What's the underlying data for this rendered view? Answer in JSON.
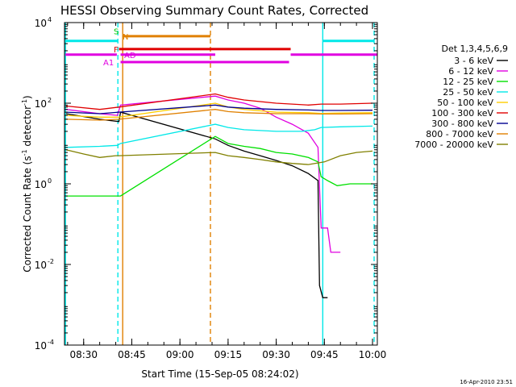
{
  "chart_data": {
    "type": "line",
    "title": "HESSI Observing Summary Count Rates, Corrected",
    "xlabel": "Start Time (15-Sep-05 08:24:02)",
    "ylabel": "Corrected Count Rate (s⁻¹ detector⁻¹)",
    "ylabel_parts": {
      "main": "Corrected Count Rate (s",
      "exp1": "-1",
      "mid": " detector",
      "exp2": "-1",
      "end": ")"
    },
    "y_scale": "log",
    "xlim": [
      "08:24:02",
      "10:01:30"
    ],
    "ylim": [
      0.0001,
      10000
    ],
    "x_ticks": [
      "08:30",
      "08:45",
      "09:00",
      "09:15",
      "09:30",
      "09:45",
      "10:00"
    ],
    "y_ticks": [
      {
        "value": 0.0001,
        "base": "10",
        "exp": "-4"
      },
      {
        "value": 0.01,
        "base": "10",
        "exp": "-2"
      },
      {
        "value": 1,
        "base": "10",
        "exp": "0"
      },
      {
        "value": 100,
        "base": "10",
        "exp": "2"
      },
      {
        "value": 10000,
        "base": "10",
        "exp": "4"
      }
    ],
    "legend_title": "Det 1,3,4,5,6,9",
    "legend_position": "right",
    "timestamp": "16-Apr-2010 23:51",
    "series": [
      {
        "name": "3 - 6 keV",
        "color": "#000000",
        "x": [
          "08:24:30",
          "08:35:00",
          "08:41:00",
          "08:41:30",
          "09:11:00",
          "09:15:00",
          "09:20:00",
          "09:25:00",
          "09:30:00",
          "09:35:00",
          "09:40:00",
          "09:43:00",
          "09:43:30",
          "09:44:30",
          "09:46:00"
        ],
        "y": [
          55,
          40,
          35,
          60,
          13,
          9,
          6.5,
          5,
          3.8,
          2.8,
          1.8,
          1.2,
          0.003,
          0.0015,
          0.0015
        ]
      },
      {
        "name": "6 - 12 keV",
        "color": "#e000e0",
        "x": [
          "08:24:30",
          "08:35:00",
          "08:40:30",
          "08:41:30",
          "09:11:00",
          "09:15:00",
          "09:20:00",
          "09:25:00",
          "09:30:00",
          "09:35:00",
          "09:40:00",
          "09:43:00",
          "09:44:00",
          "09:46:00",
          "09:47:00",
          "09:50:00"
        ],
        "y": [
          70,
          55,
          50,
          90,
          150,
          120,
          100,
          75,
          45,
          30,
          18,
          8,
          0.08,
          0.08,
          0.02,
          0.02
        ]
      },
      {
        "name": "12 - 25 keV",
        "color": "#00e000",
        "x": [
          "08:24:30",
          "08:41:30",
          "09:11:00",
          "09:15:00",
          "09:20:00",
          "09:25:00",
          "09:30:00",
          "09:35:00",
          "09:40:00",
          "09:43:00",
          "09:44:00",
          "09:46:00",
          "09:49:00",
          "09:53:00",
          "10:00:00"
        ],
        "y": [
          0.5,
          0.5,
          15,
          10,
          8.5,
          7.5,
          6,
          5.5,
          4.5,
          3.5,
          1.5,
          1.2,
          0.9,
          1.0,
          1.0
        ]
      },
      {
        "name": "25 - 50 keV",
        "color": "#00e8e8",
        "x": [
          "08:24:30",
          "08:35:00",
          "08:40:30",
          "08:41:30",
          "09:11:00",
          "09:15:00",
          "09:20:00",
          "09:30:00",
          "09:38:00",
          "09:42:00",
          "09:44:00",
          "09:50:00",
          "10:00:00"
        ],
        "y": [
          8,
          8.5,
          9,
          10,
          30,
          25,
          22,
          20,
          20,
          22,
          25,
          26,
          27
        ]
      },
      {
        "name": "50 - 100 keV",
        "color": "#ffcc00",
        "x": [
          "08:24:30",
          "08:35:00",
          "08:41:00",
          "09:11:00",
          "09:15:00",
          "09:20:00",
          "09:30:00",
          "09:40:00",
          "09:44:00",
          "09:50:00",
          "10:00:00"
        ],
        "y": [
          50,
          45,
          45,
          100,
          80,
          70,
          60,
          58,
          56,
          57,
          58
        ]
      },
      {
        "name": "100 - 300 keV",
        "color": "#e00000",
        "x": [
          "08:24:30",
          "08:35:00",
          "08:41:00",
          "09:11:00",
          "09:15:00",
          "09:20:00",
          "09:30:00",
          "09:40:00",
          "09:44:00",
          "09:50:00",
          "10:00:00"
        ],
        "y": [
          85,
          70,
          80,
          170,
          140,
          120,
          100,
          90,
          95,
          95,
          100
        ]
      },
      {
        "name": "300 - 800 keV",
        "color": "#000090",
        "x": [
          "08:24:30",
          "08:35:00",
          "08:41:00",
          "09:11:00",
          "09:15:00",
          "09:20:00",
          "09:30:00",
          "09:40:00",
          "09:44:00",
          "09:50:00",
          "10:00:00"
        ],
        "y": [
          60,
          55,
          60,
          90,
          80,
          75,
          70,
          68,
          66,
          66,
          67
        ]
      },
      {
        "name": "800 - 7000 keV",
        "color": "#e08000",
        "x": [
          "08:24:30",
          "08:35:00",
          "08:41:00",
          "09:11:00",
          "09:15:00",
          "09:20:00",
          "09:30:00",
          "09:40:00",
          "09:44:00",
          "09:50:00",
          "10:00:00"
        ],
        "y": [
          40,
          38,
          40,
          70,
          62,
          58,
          55,
          55,
          54,
          54,
          55
        ]
      },
      {
        "name": "7000 - 20000 keV",
        "color": "#808000",
        "x": [
          "08:24:30",
          "08:30:00",
          "08:35:00",
          "08:40:00",
          "08:41:00",
          "09:11:00",
          "09:15:00",
          "09:20:00",
          "09:25:00",
          "09:30:00",
          "09:35:00",
          "09:40:00",
          "09:45:00",
          "09:50:00",
          "09:55:00",
          "10:00:00"
        ],
        "y": [
          7,
          5.5,
          4.5,
          5,
          5,
          6,
          5,
          4.5,
          4,
          3.5,
          3.2,
          3.0,
          3.5,
          5,
          6,
          6.5
        ]
      }
    ],
    "vertical_markers": [
      {
        "t": "08:24:20",
        "color": "#00e8e8",
        "style": "solid"
      },
      {
        "t": "08:40:40",
        "color": "#00e8e8",
        "style": "dashed"
      },
      {
        "t": "08:42:10",
        "color": "#e08000",
        "style": "solid"
      },
      {
        "t": "09:09:30",
        "color": "#e08000",
        "style": "dashed"
      },
      {
        "t": "09:44:30",
        "color": "#00e8e8",
        "style": "solid"
      },
      {
        "t": "10:00:30",
        "color": "#00e8e8",
        "style": "dashed"
      }
    ],
    "flag_bars": [
      {
        "label": "",
        "color": "#00e8e8",
        "y": 3500,
        "segments": [
          [
            "08:24:20",
            "08:40:40"
          ],
          [
            "09:44:30",
            "10:00:30"
          ]
        ]
      },
      {
        "label": "S",
        "color": "#00c800",
        "y": 6200,
        "segments": []
      },
      {
        "label": "N",
        "color": "#e08000",
        "y": 4600,
        "segments": [
          [
            "08:42:10",
            "09:09:30"
          ]
        ]
      },
      {
        "label": "F",
        "color": "#e00000",
        "y": 2200,
        "segments": [
          [
            "08:41:00",
            "09:34:30"
          ]
        ]
      },
      {
        "label": "AD",
        "color": "#e000e0",
        "y": 1600,
        "segments": [
          [
            "08:41:30",
            "09:11:00"
          ],
          [
            "09:34:30",
            "10:01:30"
          ],
          [
            "08:24:20",
            "08:40:20"
          ]
        ]
      },
      {
        "label": "A1",
        "color": "#e000e0",
        "y": 1050,
        "segments": [
          [
            "08:41:30",
            "09:34:00"
          ]
        ]
      }
    ]
  }
}
